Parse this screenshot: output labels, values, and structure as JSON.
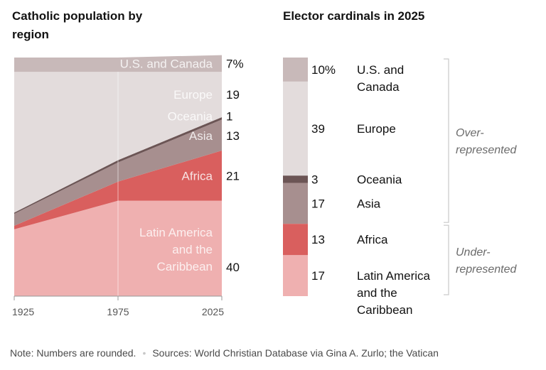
{
  "left_title": "Catholic population by region",
  "right_title": "Elector cardinals in 2025",
  "chart_data": [
    {
      "type": "area",
      "stacked": true,
      "normalized_percent": true,
      "title": "Catholic population by region",
      "x": [
        1925,
        1975,
        2025
      ],
      "x_tick_labels": [
        "1925",
        "1975",
        "2025"
      ],
      "ylim": [
        0,
        100
      ],
      "series": [
        {
          "name": "Latin America and the Caribbean",
          "label": "Latin America and the Caribbean",
          "values": [
            28,
            40,
            40
          ],
          "end_label": "40",
          "color": "#efb0b0"
        },
        {
          "name": "Africa",
          "label": "Africa",
          "values": [
            1.5,
            8,
            21
          ],
          "end_label": "21",
          "color": "#d95f5e"
        },
        {
          "name": "Asia",
          "label": "Asia",
          "values": [
            5,
            8,
            13
          ],
          "end_label": "13",
          "color": "#a78f8f"
        },
        {
          "name": "Oceania",
          "label": "Oceania",
          "values": [
            0.5,
            1,
            1
          ],
          "end_label": "1",
          "color": "#6c5555"
        },
        {
          "name": "Europe",
          "label": "Europe",
          "values": [
            59,
            37,
            19
          ],
          "end_label": "19",
          "color": "#e3dcdc"
        },
        {
          "name": "U.S. and Canada",
          "label": "U.S. and Canada",
          "values": [
            6,
            6,
            7
          ],
          "end_label": "7%",
          "color": "#c8b9b9"
        }
      ]
    },
    {
      "type": "bar",
      "stacked": true,
      "title": "Elector cardinals in 2025",
      "ylim": [
        0,
        100
      ],
      "series": [
        {
          "name": "U.S. and Canada",
          "value": 10,
          "value_label": "10%",
          "color": "#c8b9b9"
        },
        {
          "name": "Europe",
          "value": 39,
          "value_label": "39",
          "color": "#e3dcdc"
        },
        {
          "name": "Oceania",
          "value": 3,
          "value_label": "3",
          "color": "#6c5555"
        },
        {
          "name": "Asia",
          "value": 17,
          "value_label": "17",
          "color": "#a78f8f"
        },
        {
          "name": "Africa",
          "value": 13,
          "value_label": "13",
          "color": "#d95f5e"
        },
        {
          "name": "Latin America and the Caribbean",
          "value": 17,
          "value_label": "17",
          "color": "#efb0b0"
        }
      ],
      "category_labels": [
        {
          "name": "U.S. and Canada",
          "lines": [
            "U.S. and",
            "Canada"
          ]
        },
        {
          "name": "Europe",
          "lines": [
            "Europe"
          ]
        },
        {
          "name": "Oceania",
          "lines": [
            "Oceania"
          ]
        },
        {
          "name": "Asia",
          "lines": [
            "Asia"
          ]
        },
        {
          "name": "Africa",
          "lines": [
            "Africa"
          ]
        },
        {
          "name": "Latin America and the Caribbean",
          "lines": [
            "Latin America",
            "and the",
            "Caribbean"
          ]
        }
      ],
      "brackets": [
        {
          "label_lines": [
            "Over-",
            "represented"
          ],
          "covers": [
            "U.S. and Canada",
            "Europe",
            "Oceania",
            "Asia"
          ]
        },
        {
          "label_lines": [
            "Under-",
            "represented"
          ],
          "covers": [
            "Africa",
            "Latin America and the Caribbean"
          ]
        }
      ]
    }
  ],
  "footer": {
    "note": "Note: Numbers are rounded.",
    "sources": "Sources: World Christian Database via Gina A. Zurlo; the Vatican"
  }
}
